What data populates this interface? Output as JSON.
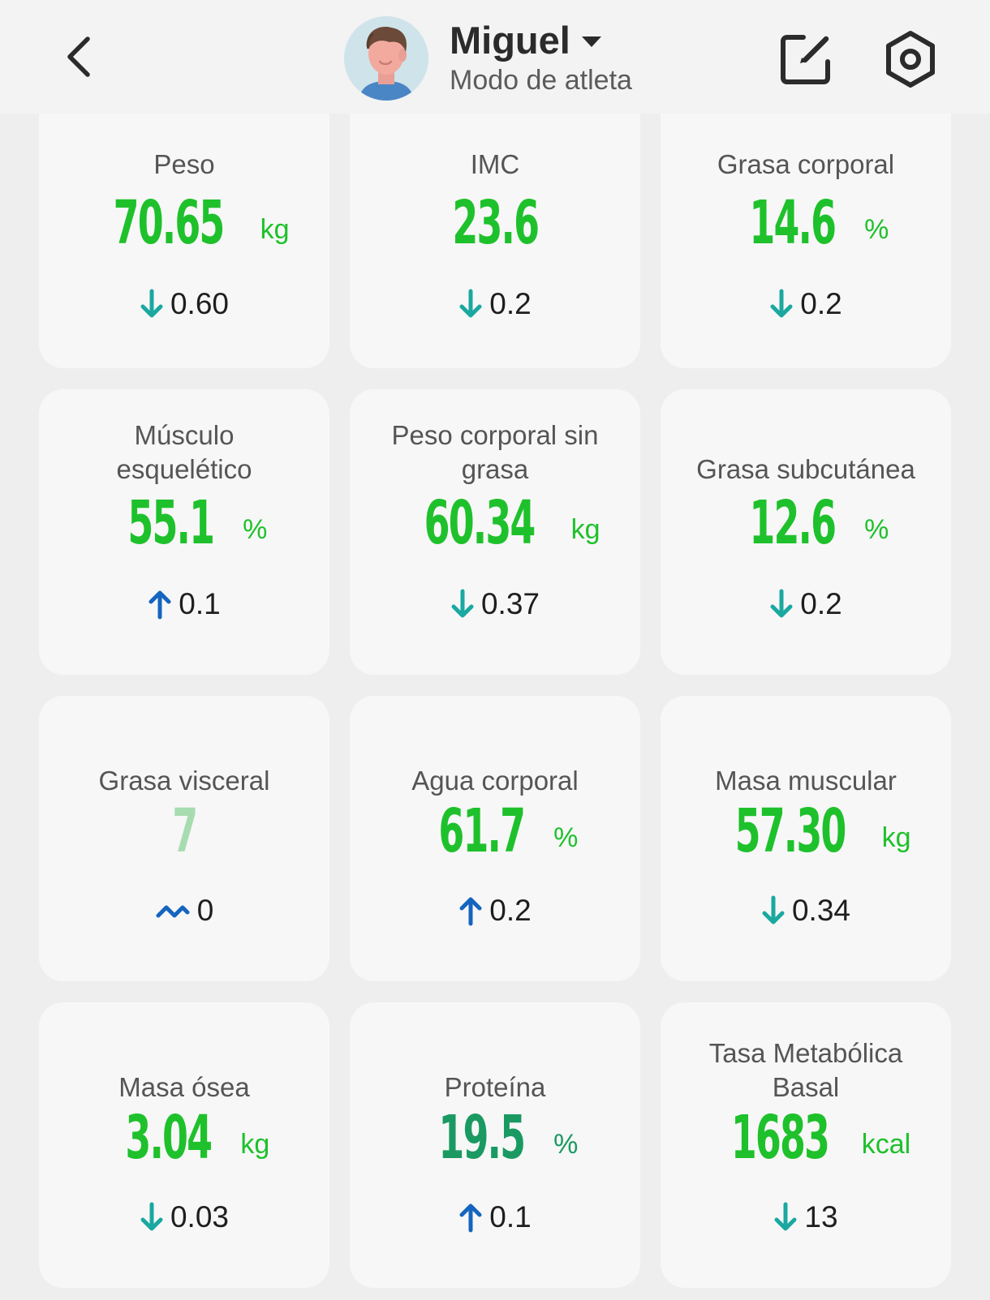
{
  "header": {
    "name": "Miguel",
    "mode": "Modo de atleta"
  },
  "colors": {
    "value_green": "#1ec12b",
    "value_light_green": "#a7dcb0",
    "value_teal": "#1a9a62",
    "arrow_down_teal": "#1aa8a0",
    "arrow_up_blue": "#1565c0",
    "card_bg": "#f7f7f7",
    "page_bg": "#eeeeee"
  },
  "metrics": [
    {
      "label": "Peso",
      "value": "70.65",
      "unit": "kg",
      "change": "0.60",
      "trend": "down",
      "value_color": "green"
    },
    {
      "label": "IMC",
      "value": "23.6",
      "unit": "",
      "change": "0.2",
      "trend": "down",
      "value_color": "green"
    },
    {
      "label": "Grasa corporal",
      "value": "14.6",
      "unit": "%",
      "change": "0.2",
      "trend": "down",
      "value_color": "green"
    },
    {
      "label": "Músculo esquelético",
      "value": "55.1",
      "unit": "%",
      "change": "0.1",
      "trend": "up",
      "value_color": "green"
    },
    {
      "label": "Peso corporal sin grasa",
      "value": "60.34",
      "unit": "kg",
      "change": "0.37",
      "trend": "down",
      "value_color": "green"
    },
    {
      "label": "Grasa subcutánea",
      "value": "12.6",
      "unit": "%",
      "change": "0.2",
      "trend": "down",
      "value_color": "green"
    },
    {
      "label": "Grasa visceral",
      "value": "7",
      "unit": "",
      "change": "0",
      "trend": "flat",
      "value_color": "light-green"
    },
    {
      "label": "Agua corporal",
      "value": "61.7",
      "unit": "%",
      "change": "0.2",
      "trend": "up",
      "value_color": "green"
    },
    {
      "label": "Masa muscular",
      "value": "57.30",
      "unit": "kg",
      "change": "0.34",
      "trend": "down",
      "value_color": "green"
    },
    {
      "label": "Masa ósea",
      "value": "3.04",
      "unit": "kg",
      "change": "0.03",
      "trend": "down",
      "value_color": "green"
    },
    {
      "label": "Proteína",
      "value": "19.5",
      "unit": "%",
      "change": "0.1",
      "trend": "up",
      "value_color": "teal"
    },
    {
      "label": "Tasa Metabólica Basal",
      "value": "1683",
      "unit": "kcal",
      "change": "13",
      "trend": "down",
      "value_color": "green"
    }
  ]
}
